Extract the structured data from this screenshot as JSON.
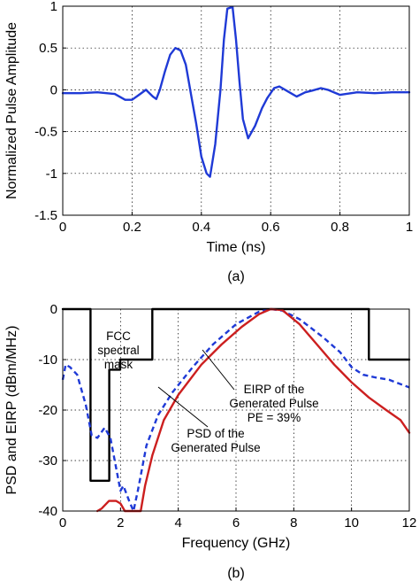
{
  "chart_data": [
    {
      "type": "line",
      "title": "",
      "xlabel": "Time (ns)",
      "ylabel": "Normalized Pulse Amplitude",
      "xlim": [
        0,
        1
      ],
      "ylim": [
        -1.5,
        1
      ],
      "xticks": [
        "0",
        "0.2",
        "0.4",
        "0.6",
        "0.8",
        "1"
      ],
      "yticks": [
        "1",
        "0.5",
        "0",
        "-0.5",
        "-1",
        "-1.5"
      ],
      "grid": true,
      "caption": "(a)",
      "series": [
        {
          "color": "#1f3ad6",
          "style": "solid",
          "points": [
            [
              0,
              -0.04
            ],
            [
              0.05,
              -0.04
            ],
            [
              0.1,
              -0.03
            ],
            [
              0.15,
              -0.05
            ],
            [
              0.18,
              -0.12
            ],
            [
              0.2,
              -0.12
            ],
            [
              0.22,
              -0.06
            ],
            [
              0.24,
              0.0
            ],
            [
              0.26,
              -0.08
            ],
            [
              0.27,
              -0.11
            ],
            [
              0.28,
              0.0
            ],
            [
              0.295,
              0.22
            ],
            [
              0.31,
              0.42
            ],
            [
              0.325,
              0.5
            ],
            [
              0.34,
              0.47
            ],
            [
              0.355,
              0.3
            ],
            [
              0.37,
              -0.05
            ],
            [
              0.385,
              -0.4
            ],
            [
              0.4,
              -0.8
            ],
            [
              0.415,
              -1.0
            ],
            [
              0.425,
              -1.04
            ],
            [
              0.44,
              -0.65
            ],
            [
              0.455,
              0.0
            ],
            [
              0.465,
              0.6
            ],
            [
              0.475,
              0.97
            ],
            [
              0.49,
              0.99
            ],
            [
              0.5,
              0.6
            ],
            [
              0.51,
              0.1
            ],
            [
              0.52,
              -0.35
            ],
            [
              0.535,
              -0.58
            ],
            [
              0.555,
              -0.43
            ],
            [
              0.575,
              -0.22
            ],
            [
              0.59,
              -0.1
            ],
            [
              0.61,
              0.02
            ],
            [
              0.625,
              0.04
            ],
            [
              0.65,
              -0.02
            ],
            [
              0.675,
              -0.08
            ],
            [
              0.7,
              -0.03
            ],
            [
              0.72,
              -0.01
            ],
            [
              0.745,
              0.02
            ],
            [
              0.765,
              0.0
            ],
            [
              0.8,
              -0.06
            ],
            [
              0.85,
              -0.03
            ],
            [
              0.9,
              -0.04
            ],
            [
              0.95,
              -0.03
            ],
            [
              1.0,
              -0.03
            ]
          ]
        }
      ]
    },
    {
      "type": "line",
      "title": "",
      "xlabel": "Frequency (GHz)",
      "ylabel": "PSD and EIRP (dBm/MHz)",
      "xlim": [
        0,
        12
      ],
      "ylim": [
        -40,
        0
      ],
      "xticks": [
        "0",
        "2",
        "4",
        "6",
        "8",
        "10",
        "12"
      ],
      "yticks": [
        "0",
        "-10",
        "-20",
        "-30",
        "-40"
      ],
      "grid": true,
      "caption": "(b)",
      "annotations": {
        "fcc_line1": "FCC",
        "fcc_line2": "spectral",
        "fcc_line3": "mask",
        "eirp_line1": "EIRP of the",
        "eirp_line2": "Generated Pulse",
        "eirp_line3": "PE = 39%",
        "psd_line1": "PSD of the",
        "psd_line2": "Generated Pulse"
      },
      "series": [
        {
          "color": "#000000",
          "style": "solid",
          "points": [
            [
              0,
              0
            ],
            [
              0.96,
              0
            ],
            [
              0.96,
              -34
            ],
            [
              1.61,
              -34
            ],
            [
              1.61,
              -12
            ],
            [
              1.99,
              -12
            ],
            [
              1.99,
              -10
            ],
            [
              3.1,
              -10
            ],
            [
              3.1,
              0
            ],
            [
              10.6,
              0
            ],
            [
              10.6,
              -10
            ],
            [
              12,
              -10
            ]
          ]
        },
        {
          "color": "#1f3ad6",
          "style": "dashed",
          "points": [
            [
              0,
              -14
            ],
            [
              0.1,
              -11
            ],
            [
              0.25,
              -11.5
            ],
            [
              0.5,
              -13
            ],
            [
              0.8,
              -19
            ],
            [
              1.0,
              -25
            ],
            [
              1.2,
              -25.5
            ],
            [
              1.45,
              -23.5
            ],
            [
              1.65,
              -25.5
            ],
            [
              1.85,
              -31.5
            ],
            [
              2.0,
              -36
            ],
            [
              2.1,
              -35
            ],
            [
              2.3,
              -38
            ],
            [
              2.45,
              -40
            ],
            [
              2.6,
              -36
            ],
            [
              2.9,
              -27
            ],
            [
              3.3,
              -21
            ],
            [
              3.8,
              -16.5
            ],
            [
              4.5,
              -11.5
            ],
            [
              5.2,
              -7
            ],
            [
              6.0,
              -3
            ],
            [
              6.8,
              -0.5
            ],
            [
              7.2,
              0
            ],
            [
              7.6,
              -0.3
            ],
            [
              8.2,
              -2
            ],
            [
              9.0,
              -5.5
            ],
            [
              9.6,
              -8.5
            ],
            [
              10.0,
              -11.5
            ],
            [
              10.4,
              -13
            ],
            [
              10.8,
              -13.5
            ],
            [
              11.3,
              -14
            ],
            [
              12,
              -15.5
            ]
          ]
        },
        {
          "color": "#cc1f1f",
          "style": "solid",
          "points": [
            [
              1.2,
              -40
            ],
            [
              1.35,
              -39.5
            ],
            [
              1.6,
              -38
            ],
            [
              1.85,
              -38
            ],
            [
              2.0,
              -38.5
            ],
            [
              2.15,
              -40
            ],
            [
              2.7,
              -40
            ],
            [
              2.85,
              -35
            ],
            [
              3.1,
              -29
            ],
            [
              3.5,
              -22
            ],
            [
              4.0,
              -17
            ],
            [
              4.8,
              -11
            ],
            [
              5.5,
              -7
            ],
            [
              6.2,
              -3.5
            ],
            [
              6.8,
              -1
            ],
            [
              7.2,
              0
            ],
            [
              7.6,
              -0.2
            ],
            [
              8.2,
              -3
            ],
            [
              8.8,
              -7
            ],
            [
              9.4,
              -11
            ],
            [
              10.0,
              -14.5
            ],
            [
              10.6,
              -17.5
            ],
            [
              11.2,
              -20
            ],
            [
              11.7,
              -22
            ],
            [
              12,
              -24.5
            ]
          ]
        }
      ]
    }
  ]
}
